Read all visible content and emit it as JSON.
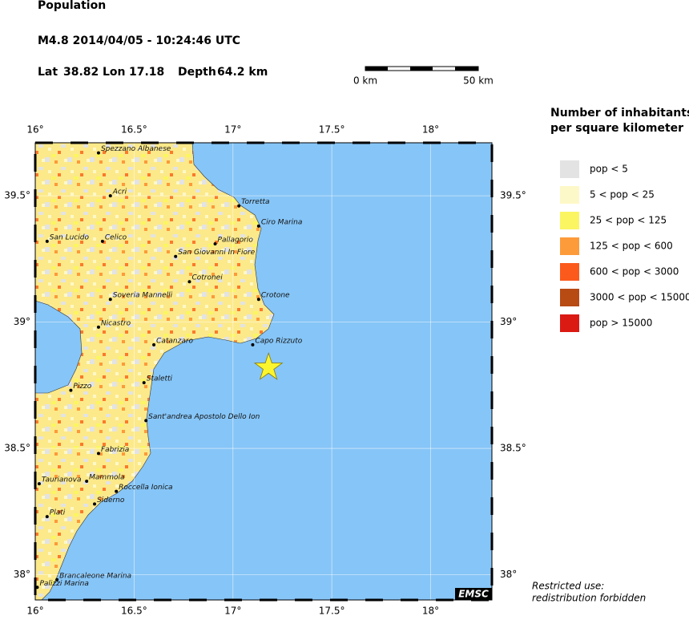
{
  "header": {
    "title": "Population",
    "event": "M4.8  2014/04/05 - 10:24:46 UTC",
    "lat_label": "Lat",
    "lat": 38.82,
    "lon_label": "Lon",
    "lon": 17.18,
    "depth_label": "Depth",
    "depth": "64.2 km"
  },
  "scale_bar": {
    "start_label": "0 km",
    "end_label": "50 km"
  },
  "map": {
    "lon_range": [
      16,
      18.31
    ],
    "lat_range": [
      37.9,
      39.71
    ],
    "lon_ticks": [
      {
        "value": 16,
        "label": "16°"
      },
      {
        "value": 16.5,
        "label": "16.5°"
      },
      {
        "value": 17,
        "label": "17°"
      },
      {
        "value": 17.5,
        "label": "17.5°"
      },
      {
        "value": 18,
        "label": "18°"
      }
    ],
    "lat_ticks": [
      {
        "value": 38,
        "label": "38°"
      },
      {
        "value": 38.5,
        "label": "38.5°"
      },
      {
        "value": 39,
        "label": "39°"
      },
      {
        "value": 39.5,
        "label": "39.5°"
      }
    ],
    "epicenter": {
      "lat": 38.82,
      "lon": 17.18
    },
    "cities": [
      {
        "name": "Spezzano Albanese",
        "lat": 39.67,
        "lon": 16.32
      },
      {
        "name": "Acri",
        "lat": 39.5,
        "lon": 16.38
      },
      {
        "name": "Torretta",
        "lat": 39.46,
        "lon": 17.03
      },
      {
        "name": "Ciro Marina",
        "lat": 39.38,
        "lon": 17.13
      },
      {
        "name": "San Lucido",
        "lat": 39.32,
        "lon": 16.06
      },
      {
        "name": "Celico",
        "lat": 39.32,
        "lon": 16.34
      },
      {
        "name": "Pallagorio",
        "lat": 39.31,
        "lon": 16.91
      },
      {
        "name": "San Giovanni In Fiore",
        "lat": 39.26,
        "lon": 16.71
      },
      {
        "name": "Cotronei",
        "lat": 39.16,
        "lon": 16.78
      },
      {
        "name": "Crotone",
        "lat": 39.09,
        "lon": 17.13
      },
      {
        "name": "Soveria Mannelli",
        "lat": 39.09,
        "lon": 16.38
      },
      {
        "name": "Nicastro",
        "lat": 38.98,
        "lon": 16.32
      },
      {
        "name": "Catanzaro",
        "lat": 38.91,
        "lon": 16.6
      },
      {
        "name": "Capo Rizzuto",
        "lat": 38.91,
        "lon": 17.1
      },
      {
        "name": "Staletti",
        "lat": 38.76,
        "lon": 16.55
      },
      {
        "name": "Pizzo",
        "lat": 38.73,
        "lon": 16.18
      },
      {
        "name": "Sant'andrea Apostolo Dello Ion",
        "lat": 38.61,
        "lon": 16.56
      },
      {
        "name": "Fabrizia",
        "lat": 38.48,
        "lon": 16.32
      },
      {
        "name": "Taurianova",
        "lat": 38.36,
        "lon": 16.02
      },
      {
        "name": "Mammola",
        "lat": 38.37,
        "lon": 16.26
      },
      {
        "name": "Roccella Ionica",
        "lat": 38.33,
        "lon": 16.41
      },
      {
        "name": "Siderno",
        "lat": 38.28,
        "lon": 16.3
      },
      {
        "name": "Plati",
        "lat": 38.23,
        "lon": 16.06
      },
      {
        "name": "Brancaleone Marina",
        "lat": 37.98,
        "lon": 16.11
      },
      {
        "name": "Palizzi Marina",
        "lat": 37.95,
        "lon": 16.01
      }
    ],
    "badge": "EMSC"
  },
  "legend": {
    "title_line1": "Number of inhabitants",
    "title_line2": "per square kilometer",
    "items": [
      {
        "label": "pop < 5",
        "color": "#e3e3e3"
      },
      {
        "label": "5 < pop < 25",
        "color": "#fdf8c8"
      },
      {
        "label": "25 < pop < 125",
        "color": "#fbf562"
      },
      {
        "label": "125 < pop < 600",
        "color": "#fd9a3a"
      },
      {
        "label": "600 < pop < 3000",
        "color": "#fc5a1c"
      },
      {
        "label": "3000 < pop < 15000",
        "color": "#b84a14"
      },
      {
        "label": "pop > 15000",
        "color": "#dc1a14"
      }
    ]
  },
  "notice": {
    "line1": "Restricted use:",
    "line2": "redistribution forbidden"
  }
}
